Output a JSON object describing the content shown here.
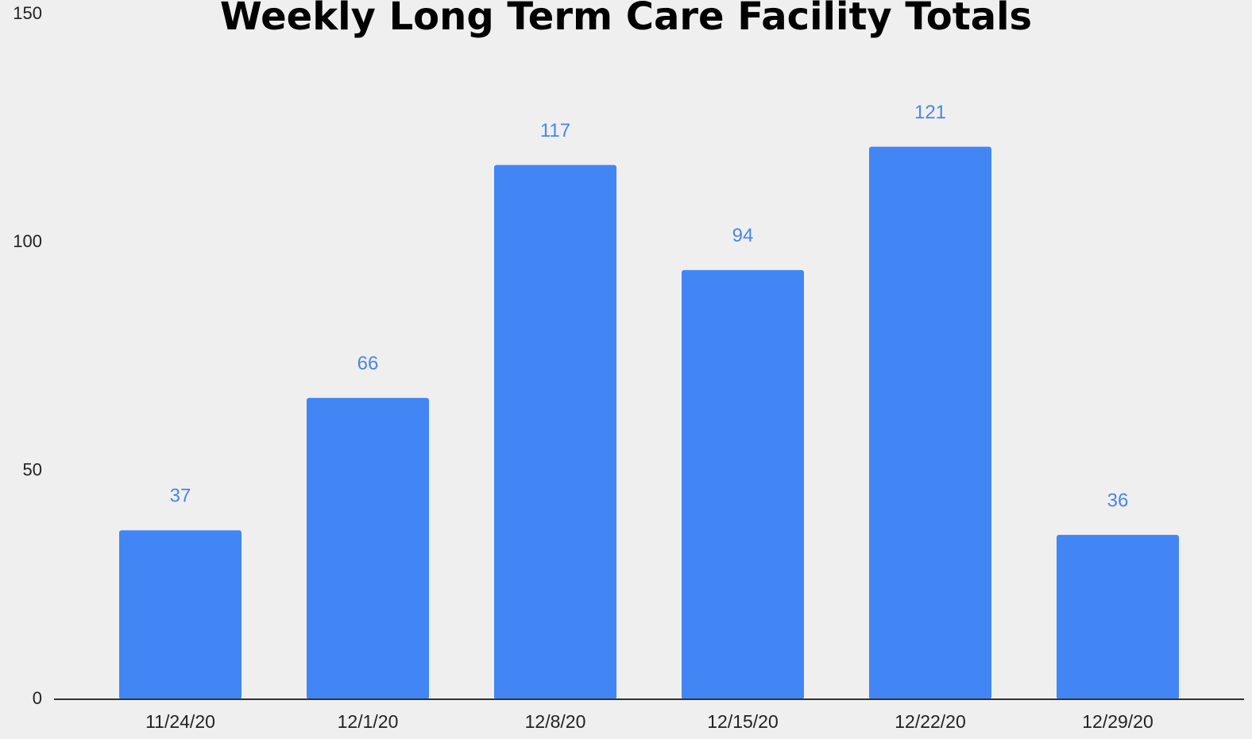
{
  "chart_data": {
    "type": "bar",
    "title": "Weekly Long Term Care Facility Totals",
    "categories": [
      "11/24/20",
      "12/1/20",
      "12/8/20",
      "12/15/20",
      "12/22/20",
      "12/29/20"
    ],
    "values": [
      37,
      66,
      117,
      94,
      121,
      36
    ],
    "color": "#4285f4",
    "ylim": [
      0,
      150
    ],
    "yticks": [
      0,
      50,
      100,
      150
    ],
    "grid": false
  }
}
